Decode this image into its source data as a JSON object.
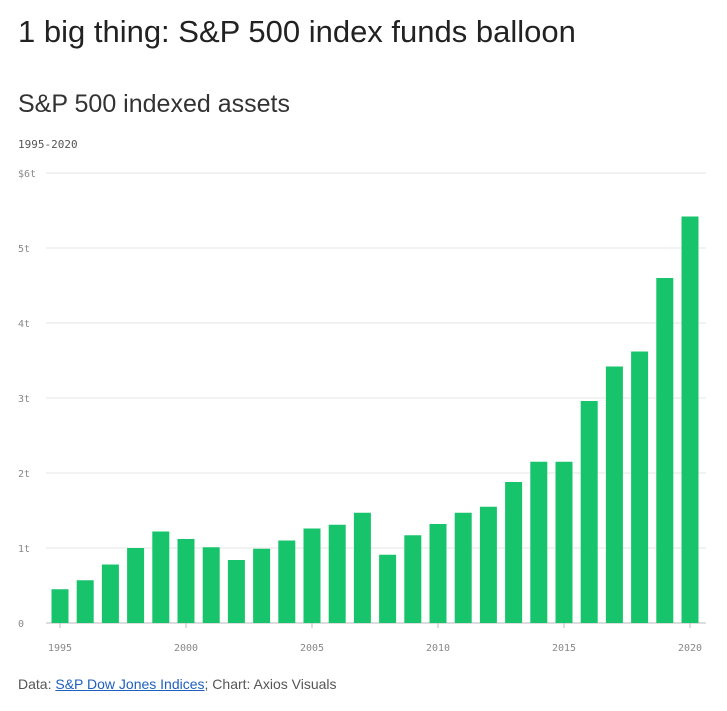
{
  "headline": "1 big thing: S&P 500 index funds balloon",
  "chart_data": {
    "type": "bar",
    "title": "S&P 500 indexed assets",
    "subtitle": "1995-2020",
    "x": [
      1995,
      1996,
      1997,
      1998,
      1999,
      2000,
      2001,
      2002,
      2003,
      2004,
      2005,
      2006,
      2007,
      2008,
      2009,
      2010,
      2011,
      2012,
      2013,
      2014,
      2015,
      2016,
      2017,
      2018,
      2019,
      2020
    ],
    "values": [
      0.45,
      0.57,
      0.78,
      1.0,
      1.22,
      1.12,
      1.01,
      0.84,
      0.99,
      1.1,
      1.26,
      1.31,
      1.47,
      0.91,
      1.17,
      1.32,
      1.47,
      1.55,
      1.88,
      2.15,
      2.15,
      2.96,
      3.42,
      3.62,
      4.6,
      5.42
    ],
    "ylim": [
      0,
      6
    ],
    "y_ticks": [
      0,
      1,
      2,
      3,
      4,
      5,
      6
    ],
    "y_tick_labels": [
      "0",
      "1t",
      "2t",
      "3t",
      "4t",
      "5t",
      "$6t"
    ],
    "x_ticks": [
      1995,
      2000,
      2005,
      2010,
      2015,
      2020
    ],
    "x_tick_labels": [
      "1995",
      "2000",
      "2005",
      "2010",
      "2015",
      "2020"
    ],
    "unit": "trillion USD",
    "bar_color": "#17c46b",
    "grid": true
  },
  "footer": {
    "prefix": "Data: ",
    "source_link": "S&P Dow Jones Indices",
    "suffix": "; Chart: Axios Visuals"
  }
}
